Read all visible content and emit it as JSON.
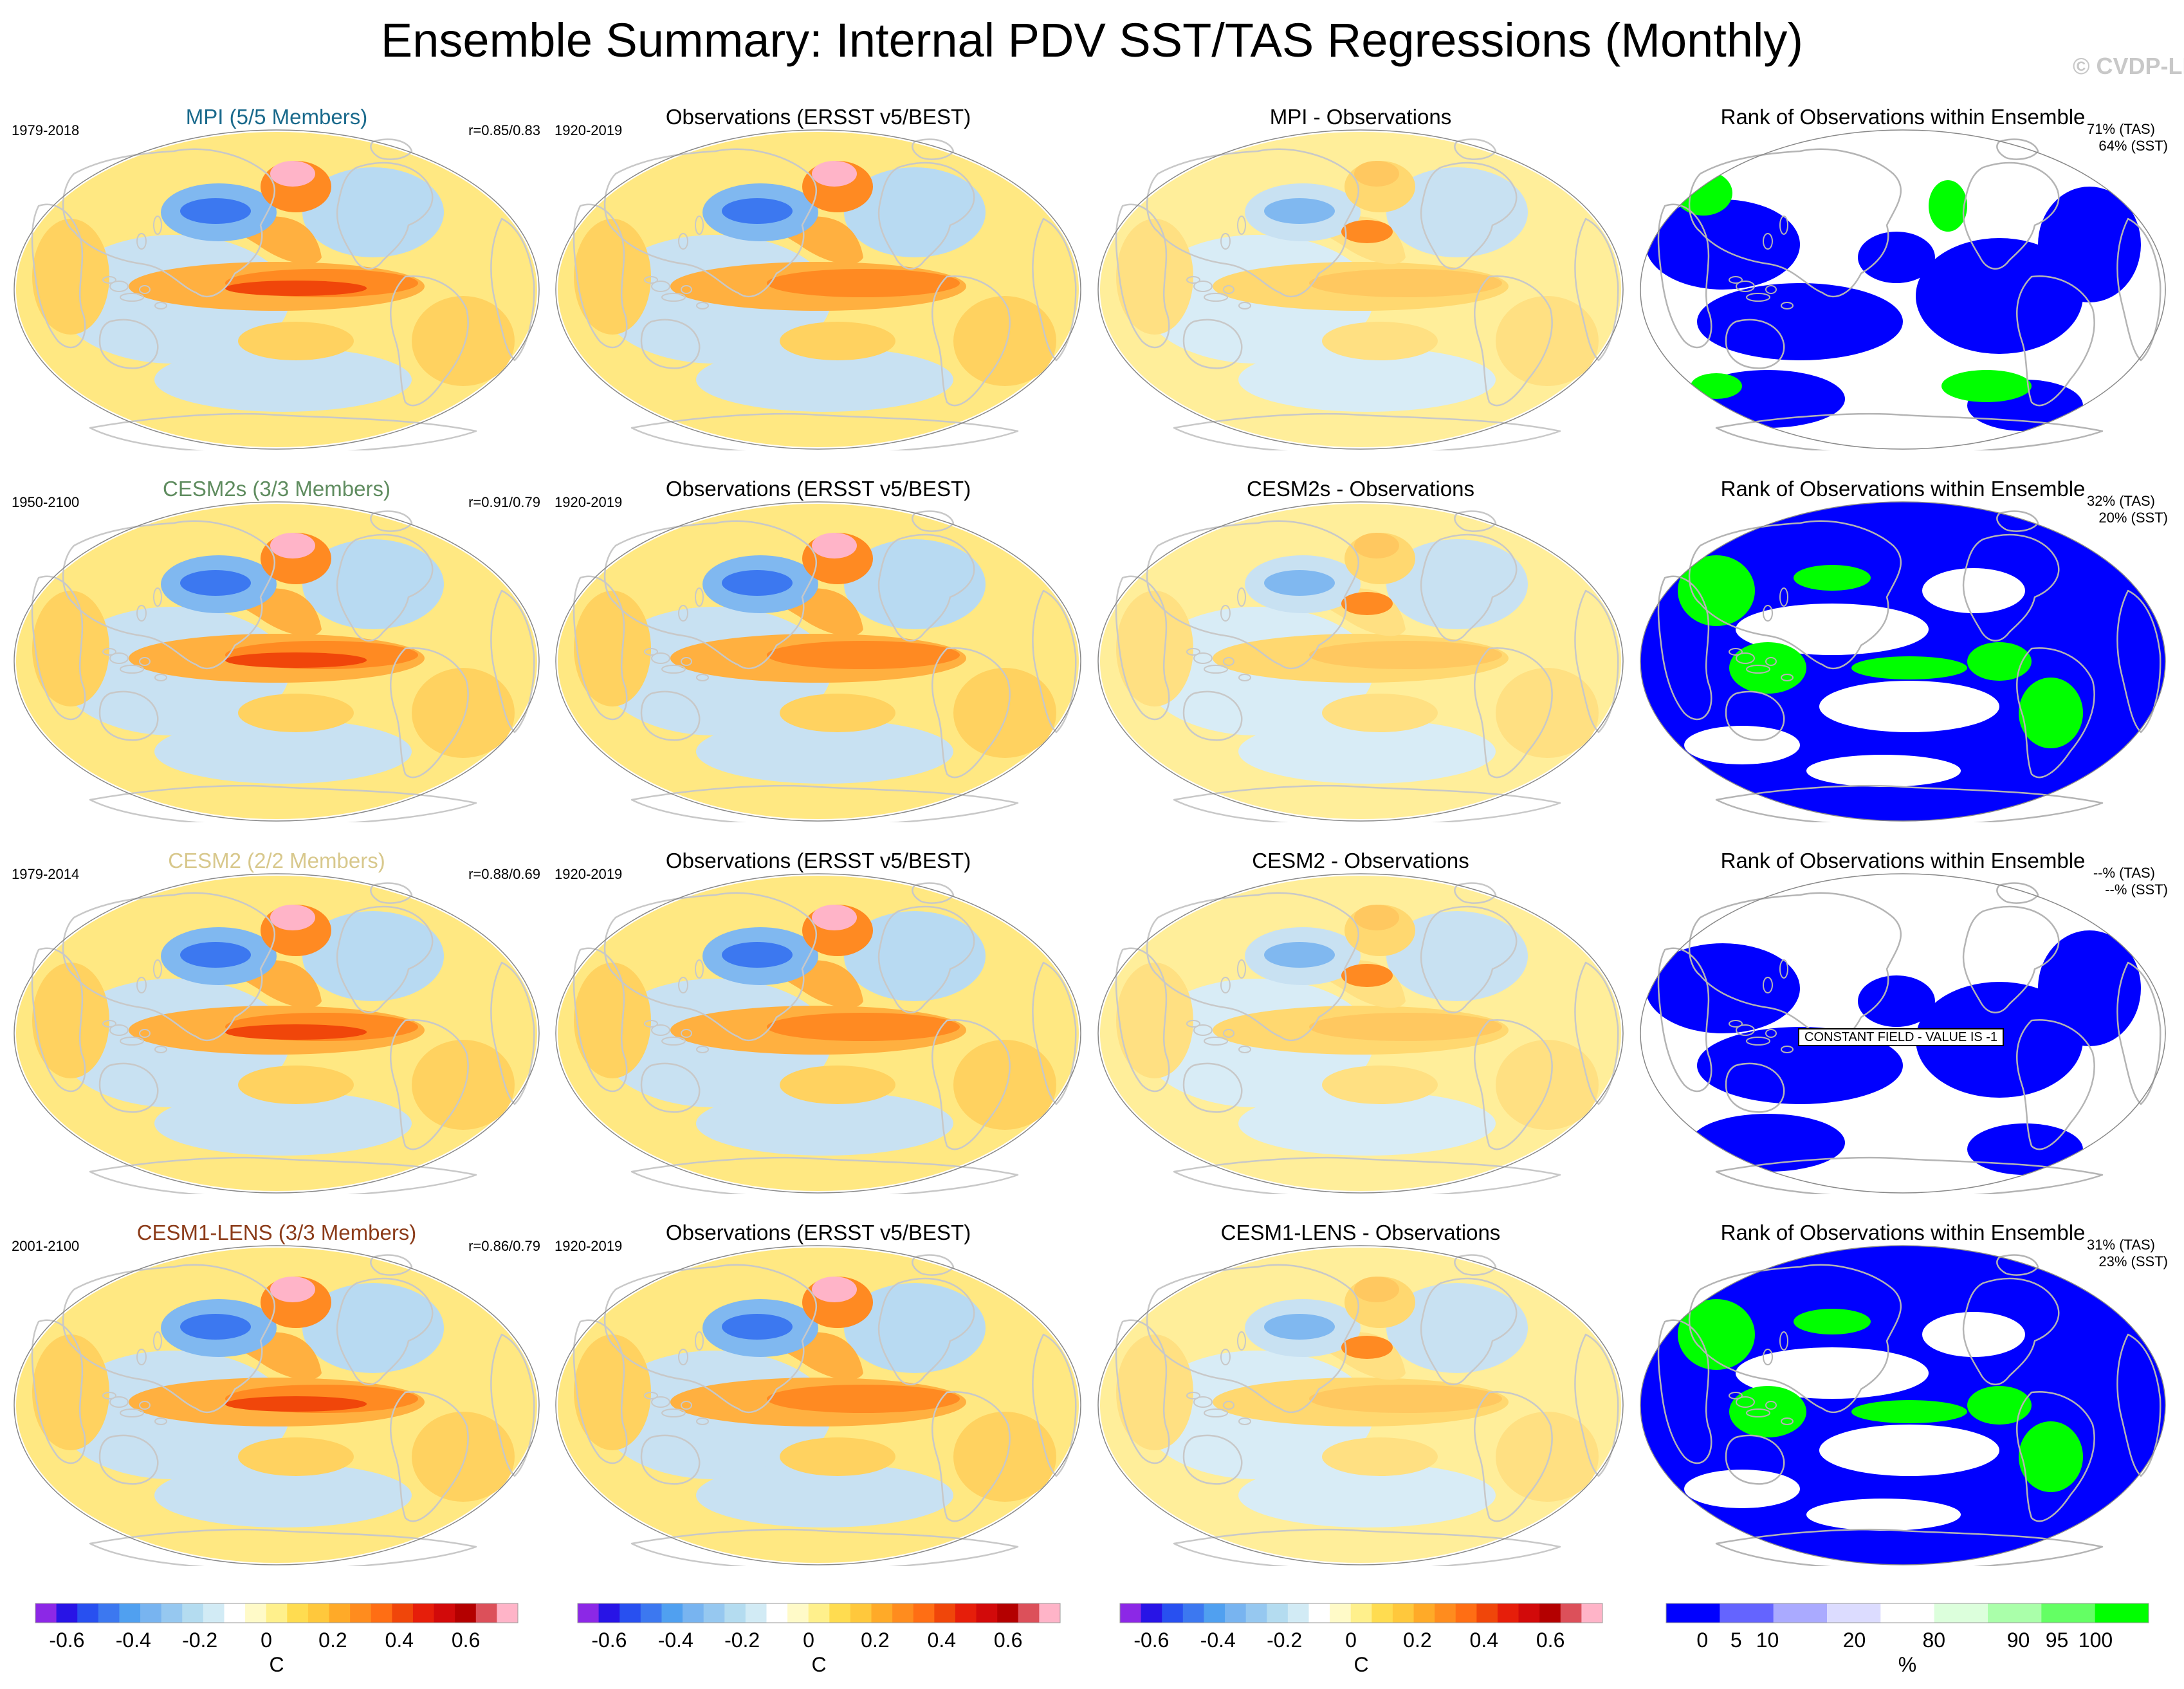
{
  "title": "Ensemble Summary: Internal PDV SST/TAS Regressions (Monthly)",
  "watermark": "© CVDP-LE",
  "rows": [
    {
      "model": {
        "title": "MPI (5/5 Members)",
        "color": "#1a6a8c",
        "years": "1979-2018",
        "corr": "r=0.85/0.83"
      },
      "obs": {
        "title": "Observations (ERSST v5/BEST)",
        "years": "1920-2019"
      },
      "diff": {
        "title": "MPI - Observations"
      },
      "rank": {
        "title": "Rank of Observations within Ensemble",
        "tas": "71% (TAS)",
        "sst": "64% (SST)"
      }
    },
    {
      "model": {
        "title": "CESM2s (3/3 Members)",
        "color": "#5f8c5f",
        "years": "1950-2100",
        "corr": "r=0.91/0.79"
      },
      "obs": {
        "title": "Observations (ERSST v5/BEST)",
        "years": "1920-2019"
      },
      "diff": {
        "title": "CESM2s - Observations"
      },
      "rank": {
        "title": "Rank of Observations within Ensemble",
        "tas": "32% (TAS)",
        "sst": "20% (SST)"
      }
    },
    {
      "model": {
        "title": "CESM2 (2/2 Members)",
        "color": "#d8c88c",
        "years": "1979-2014",
        "corr": "r=0.88/0.69"
      },
      "obs": {
        "title": "Observations (ERSST v5/BEST)",
        "years": "1920-2019"
      },
      "diff": {
        "title": "CESM2 - Observations"
      },
      "rank": {
        "title": "Rank of Observations within Ensemble",
        "tas": "--% (TAS)",
        "sst": "--% (SST)",
        "note": "CONSTANT FIELD - VALUE IS -1"
      }
    },
    {
      "model": {
        "title": "CESM1-LENS (3/3 Members)",
        "color": "#8c3c1a",
        "years": "2001-2100",
        "corr": "r=0.86/0.79"
      },
      "obs": {
        "title": "Observations (ERSST v5/BEST)",
        "years": "1920-2019"
      },
      "diff": {
        "title": "CESM1-LENS - Observations"
      },
      "rank": {
        "title": "Rank of Observations within Ensemble",
        "tas": "31% (TAS)",
        "sst": "23% (SST)"
      }
    }
  ],
  "colorbars": {
    "temperature": {
      "unit": "C",
      "labels": [
        "-0.6",
        "-0.4",
        "-0.2",
        "0",
        "0.2",
        "0.4",
        "0.6"
      ],
      "colors": [
        "#8c28e6",
        "#2814e6",
        "#2850f0",
        "#3c78f0",
        "#50a0f0",
        "#78b4f0",
        "#96c8f0",
        "#b4dcf0",
        "#d2ebf5",
        "#ffffff",
        "#fffac8",
        "#fff08c",
        "#ffdc50",
        "#ffc83c",
        "#ffaa28",
        "#ff8c1e",
        "#ff6e14",
        "#f0460a",
        "#e61e0a",
        "#d20a0a",
        "#b40000",
        "#dc505a",
        "#ffb4c8"
      ]
    },
    "rank": {
      "unit": "%",
      "labels": [
        "0",
        "5",
        "10",
        "20",
        "80",
        "90",
        "95",
        "100"
      ],
      "colors": [
        "#0000ff",
        "#6464ff",
        "#aaaaff",
        "#dcdcff",
        "#ffffff",
        "#dcffdc",
        "#aaffaa",
        "#64ff64",
        "#00ff00"
      ]
    }
  },
  "legend_colors": {
    "land_outline": "#c8c8c8",
    "rank_low": "#0000ff",
    "rank_high": "#00ff00"
  }
}
